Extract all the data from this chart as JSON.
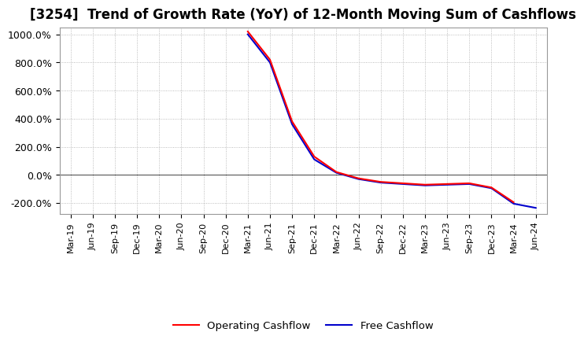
{
  "title": "[3254]  Trend of Growth Rate (YoY) of 12-Month Moving Sum of Cashflows",
  "title_fontsize": 12,
  "background_color": "#ffffff",
  "grid_color": "#aaaaaa",
  "ylim": [
    -280,
    1050
  ],
  "yticks": [
    -200,
    0,
    200,
    400,
    600,
    800,
    1000
  ],
  "ytick_labels": [
    "-200.0%",
    "0.0%",
    "200.0%",
    "400.0%",
    "600.0%",
    "800.0%",
    "1000.0%"
  ],
  "x_labels": [
    "Mar-19",
    "Jun-19",
    "Sep-19",
    "Dec-19",
    "Mar-20",
    "Jun-20",
    "Sep-20",
    "Dec-20",
    "Mar-21",
    "Jun-21",
    "Sep-21",
    "Dec-21",
    "Mar-22",
    "Jun-22",
    "Sep-22",
    "Dec-22",
    "Mar-23",
    "Jun-23",
    "Sep-23",
    "Dec-23",
    "Mar-24",
    "Jun-24"
  ],
  "operating_cashflow": [
    null,
    null,
    null,
    null,
    null,
    null,
    null,
    null,
    1020,
    820,
    380,
    130,
    20,
    -25,
    -50,
    -60,
    -70,
    -65,
    -60,
    -90,
    -195,
    null
  ],
  "free_cashflow": [
    null,
    null,
    null,
    null,
    null,
    null,
    null,
    null,
    1000,
    800,
    360,
    110,
    15,
    -30,
    -55,
    -65,
    -75,
    -70,
    -65,
    -95,
    -205,
    -235
  ],
  "op_color": "#ff0000",
  "fcf_color": "#0000cc",
  "line_width": 1.5
}
